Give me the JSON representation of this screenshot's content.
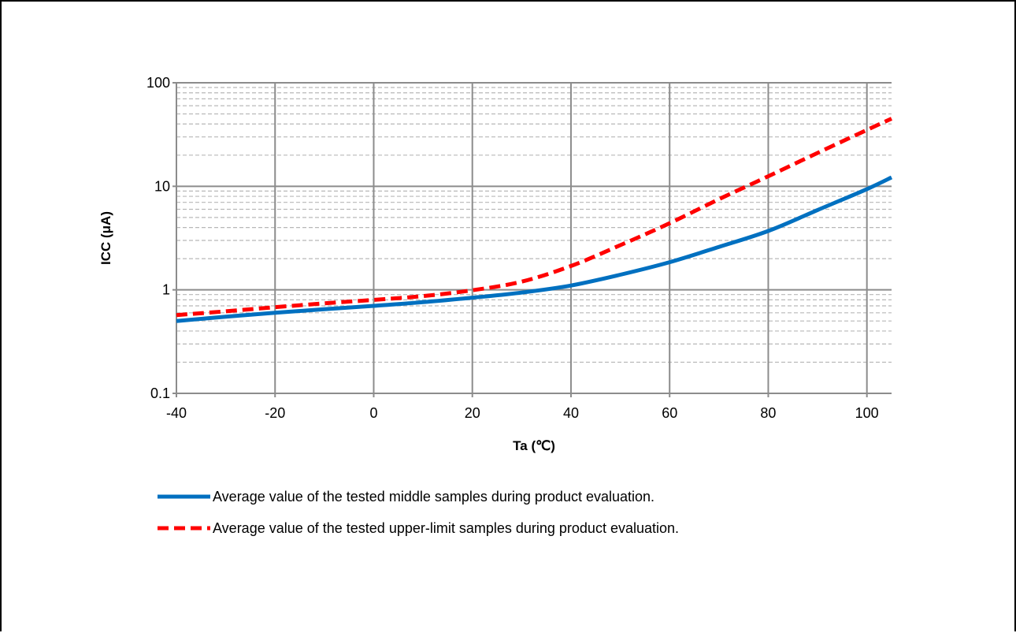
{
  "chart_data": {
    "type": "line",
    "xlabel": "Ta (℃)",
    "ylabel": "ICC (μA)",
    "xlim": [
      -40,
      105
    ],
    "ylim": [
      0.1,
      100
    ],
    "yscale": "log",
    "grid": true,
    "legend_position": "bottom",
    "x_ticks": [
      "-40",
      "-20",
      "0",
      "20",
      "40",
      "60",
      "80",
      "100"
    ],
    "y_ticks": [
      "0.1",
      "1",
      "10",
      "100"
    ],
    "series": [
      {
        "name": "Average value of the tested middle samples during product evaluation.",
        "color": "#0070C0",
        "style": "solid",
        "x": [
          -40,
          -30,
          -20,
          -10,
          0,
          10,
          20,
          30,
          40,
          50,
          60,
          70,
          80,
          90,
          100,
          105
        ],
        "y": [
          0.5,
          0.55,
          0.6,
          0.65,
          0.7,
          0.76,
          0.84,
          0.94,
          1.1,
          1.4,
          1.85,
          2.6,
          3.7,
          5.9,
          9.4,
          12.2
        ]
      },
      {
        "name": "Average value of the tested upper-limit samples during product evaluation.",
        "color": "#FF0000",
        "style": "dashed",
        "x": [
          -40,
          -30,
          -20,
          -10,
          0,
          10,
          20,
          30,
          40,
          50,
          60,
          70,
          80,
          90,
          100,
          105
        ],
        "y": [
          0.57,
          0.62,
          0.68,
          0.74,
          0.8,
          0.87,
          0.99,
          1.2,
          1.7,
          2.7,
          4.4,
          7.5,
          12.5,
          21,
          35,
          45
        ]
      }
    ]
  }
}
